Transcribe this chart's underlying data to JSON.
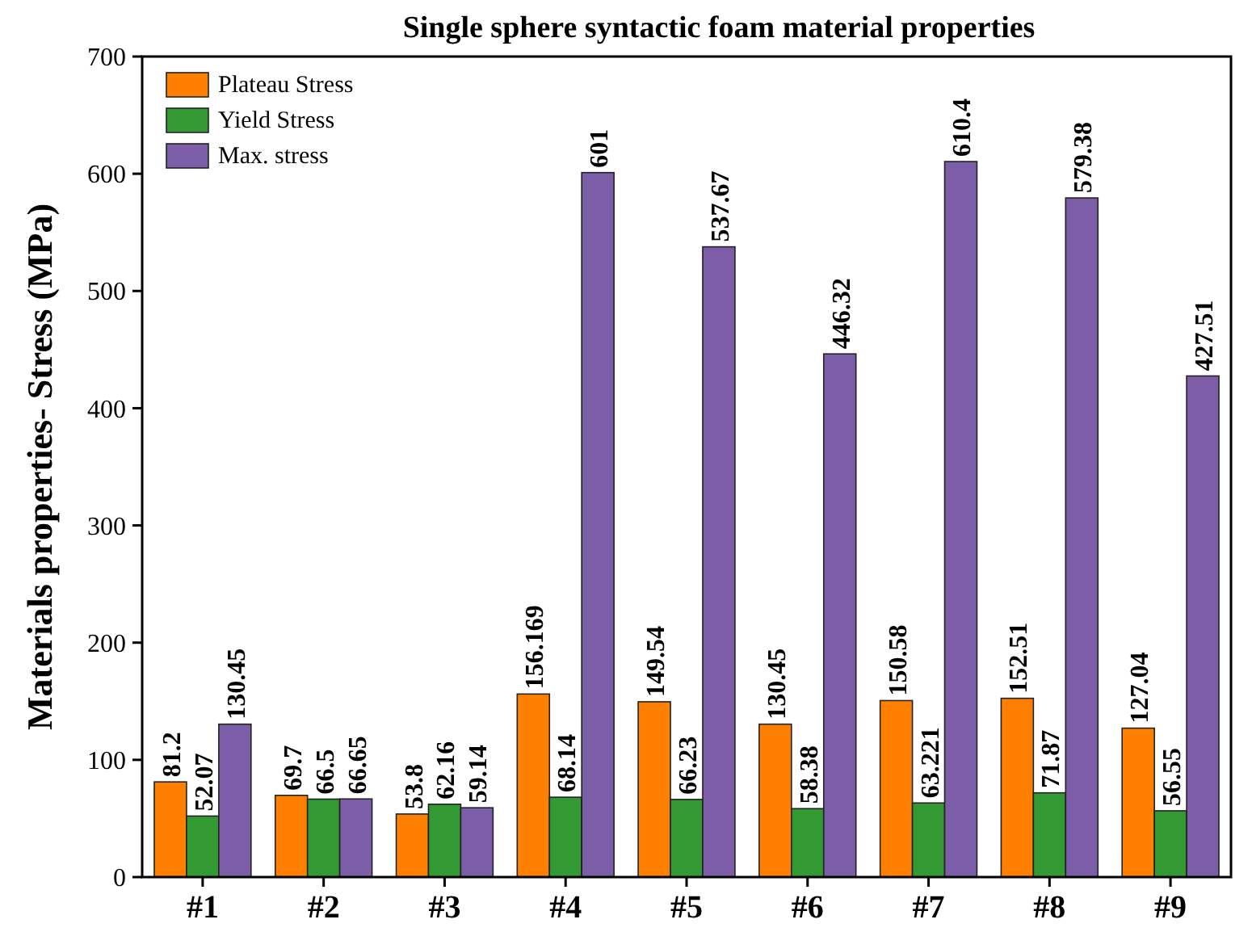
{
  "chart_data": {
    "type": "bar",
    "title": "Single sphere syntactic foam material properties",
    "ylabel": "Materials properties- Stress (MPa)",
    "categories": [
      "#1",
      "#2",
      "#3",
      "#4",
      "#5",
      "#6",
      "#7",
      "#8",
      "#9"
    ],
    "series": [
      {
        "name": "Plateau Stress",
        "color": "#ff8000",
        "values": [
          81.2,
          69.7,
          53.8,
          156.169,
          149.54,
          130.45,
          150.58,
          152.51,
          127.04
        ]
      },
      {
        "name": "Yield Stress",
        "color": "#339933",
        "values": [
          52.07,
          66.5,
          62.16,
          68.14,
          66.23,
          58.38,
          63.221,
          71.87,
          56.55
        ]
      },
      {
        "name": "Max. stress",
        "color": "#7b5ea7",
        "values": [
          130.45,
          66.65,
          59.14,
          601,
          537.67,
          446.32,
          610.4,
          579.38,
          427.51
        ]
      }
    ],
    "ylim": [
      0,
      700
    ],
    "yticks": [
      0,
      100,
      200,
      300,
      400,
      500,
      600,
      700
    ],
    "data_labels": true,
    "legend": "top left",
    "grid": false
  }
}
